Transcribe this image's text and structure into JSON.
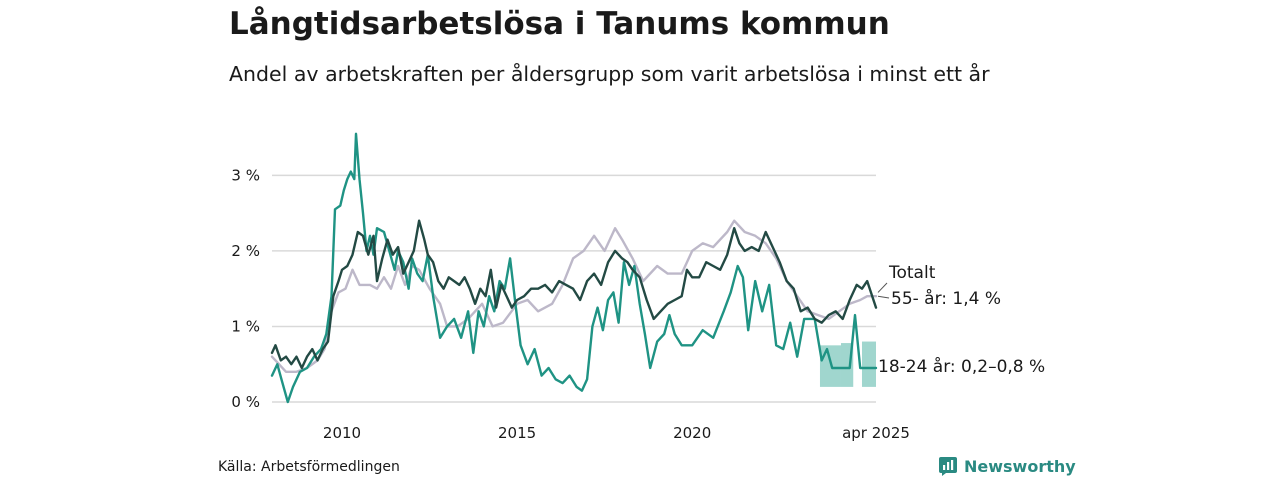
{
  "header": {
    "title": "Långtidsarbetslösa i Tanums kommun",
    "subtitle": "Andel av arbetskraften per åldersgrupp som varit arbetslösa i minst ett år"
  },
  "footer": {
    "source": "Källa: Arbetsförmedlingen",
    "brand": "Newsworthy"
  },
  "colors": {
    "total": "#234a44",
    "age55": "#bdb8c9",
    "age1824": "#1f9384",
    "band": "#8fcfc6",
    "grid": "#d9d9d9",
    "brand": "#2a8a82"
  },
  "chart_data": {
    "type": "line",
    "title": "Långtidsarbetslösa i Tanums kommun",
    "subtitle": "Andel av arbetskraften per åldersgrupp som varit arbetslösa i minst ett år",
    "xlim": [
      2008.0,
      2025.25
    ],
    "ylim": [
      0,
      3.6
    ],
    "x_ticks": [
      {
        "value": 2010,
        "label": "2010"
      },
      {
        "value": 2015,
        "label": "2015"
      },
      {
        "value": 2020,
        "label": "2020"
      },
      {
        "value": 2025.25,
        "label": "apr 2025"
      }
    ],
    "y_ticks": [
      {
        "value": 0,
        "label": "0 %"
      },
      {
        "value": 1,
        "label": "1 %"
      },
      {
        "value": 2,
        "label": "2 %"
      },
      {
        "value": 3,
        "label": "3 %"
      }
    ],
    "grid": true,
    "series": [
      {
        "key": "age55",
        "name": "55- år",
        "end_label": "55- år: 1,4 %",
        "points": [
          [
            2008.0,
            0.6
          ],
          [
            2008.2,
            0.5
          ],
          [
            2008.4,
            0.4
          ],
          [
            2008.7,
            0.4
          ],
          [
            2009.0,
            0.45
          ],
          [
            2009.3,
            0.55
          ],
          [
            2009.5,
            0.7
          ],
          [
            2009.7,
            1.2
          ],
          [
            2009.9,
            1.45
          ],
          [
            2010.1,
            1.5
          ],
          [
            2010.3,
            1.75
          ],
          [
            2010.5,
            1.55
          ],
          [
            2010.8,
            1.55
          ],
          [
            2011.0,
            1.5
          ],
          [
            2011.2,
            1.65
          ],
          [
            2011.4,
            1.5
          ],
          [
            2011.6,
            1.8
          ],
          [
            2011.8,
            1.55
          ],
          [
            2012.0,
            1.8
          ],
          [
            2012.2,
            1.75
          ],
          [
            2012.5,
            1.5
          ],
          [
            2012.8,
            1.3
          ],
          [
            2013.0,
            1.0
          ],
          [
            2013.3,
            1.0
          ],
          [
            2013.6,
            1.1
          ],
          [
            2014.0,
            1.3
          ],
          [
            2014.3,
            1.0
          ],
          [
            2014.6,
            1.05
          ],
          [
            2015.0,
            1.3
          ],
          [
            2015.3,
            1.35
          ],
          [
            2015.6,
            1.2
          ],
          [
            2016.0,
            1.3
          ],
          [
            2016.3,
            1.55
          ],
          [
            2016.6,
            1.9
          ],
          [
            2016.9,
            2.0
          ],
          [
            2017.2,
            2.2
          ],
          [
            2017.5,
            2.0
          ],
          [
            2017.8,
            2.3
          ],
          [
            2018.0,
            2.15
          ],
          [
            2018.3,
            1.9
          ],
          [
            2018.6,
            1.6
          ],
          [
            2019.0,
            1.8
          ],
          [
            2019.3,
            1.7
          ],
          [
            2019.7,
            1.7
          ],
          [
            2020.0,
            2.0
          ],
          [
            2020.3,
            2.1
          ],
          [
            2020.6,
            2.05
          ],
          [
            2021.0,
            2.25
          ],
          [
            2021.2,
            2.4
          ],
          [
            2021.5,
            2.25
          ],
          [
            2021.8,
            2.2
          ],
          [
            2022.1,
            2.1
          ],
          [
            2022.4,
            1.9
          ],
          [
            2022.7,
            1.6
          ],
          [
            2023.0,
            1.4
          ],
          [
            2023.3,
            1.2
          ],
          [
            2023.6,
            1.15
          ],
          [
            2023.9,
            1.1
          ],
          [
            2024.2,
            1.2
          ],
          [
            2024.5,
            1.3
          ],
          [
            2024.8,
            1.35
          ],
          [
            2025.0,
            1.4
          ],
          [
            2025.25,
            1.4
          ]
        ]
      },
      {
        "key": "age1824",
        "name": "18-24 år",
        "end_label": "18-24 år: 0,2–0,8 %",
        "points": [
          [
            2008.0,
            0.35
          ],
          [
            2008.15,
            0.5
          ],
          [
            2008.3,
            0.25
          ],
          [
            2008.45,
            0.0
          ],
          [
            2008.6,
            0.2
          ],
          [
            2008.8,
            0.4
          ],
          [
            2009.0,
            0.45
          ],
          [
            2009.2,
            0.6
          ],
          [
            2009.4,
            0.7
          ],
          [
            2009.55,
            0.9
          ],
          [
            2009.7,
            1.4
          ],
          [
            2009.8,
            2.55
          ],
          [
            2009.95,
            2.6
          ],
          [
            2010.05,
            2.8
          ],
          [
            2010.15,
            2.95
          ],
          [
            2010.25,
            3.05
          ],
          [
            2010.35,
            2.95
          ],
          [
            2010.4,
            3.55
          ],
          [
            2010.5,
            2.95
          ],
          [
            2010.6,
            2.5
          ],
          [
            2010.7,
            2.0
          ],
          [
            2010.8,
            2.2
          ],
          [
            2010.9,
            1.95
          ],
          [
            2011.0,
            2.3
          ],
          [
            2011.2,
            2.25
          ],
          [
            2011.35,
            2.0
          ],
          [
            2011.5,
            1.75
          ],
          [
            2011.6,
            2.0
          ],
          [
            2011.75,
            1.85
          ],
          [
            2011.9,
            1.5
          ],
          [
            2012.0,
            1.9
          ],
          [
            2012.15,
            1.7
          ],
          [
            2012.3,
            1.6
          ],
          [
            2012.45,
            1.95
          ],
          [
            2012.6,
            1.4
          ],
          [
            2012.8,
            0.85
          ],
          [
            2013.0,
            1.0
          ],
          [
            2013.2,
            1.1
          ],
          [
            2013.4,
            0.85
          ],
          [
            2013.6,
            1.2
          ],
          [
            2013.75,
            0.65
          ],
          [
            2013.9,
            1.2
          ],
          [
            2014.05,
            1.0
          ],
          [
            2014.2,
            1.4
          ],
          [
            2014.35,
            1.2
          ],
          [
            2014.5,
            1.6
          ],
          [
            2014.65,
            1.5
          ],
          [
            2014.8,
            1.9
          ],
          [
            2014.95,
            1.3
          ],
          [
            2015.1,
            0.75
          ],
          [
            2015.3,
            0.5
          ],
          [
            2015.5,
            0.7
          ],
          [
            2015.7,
            0.35
          ],
          [
            2015.9,
            0.45
          ],
          [
            2016.1,
            0.3
          ],
          [
            2016.3,
            0.25
          ],
          [
            2016.5,
            0.35
          ],
          [
            2016.7,
            0.2
          ],
          [
            2016.85,
            0.15
          ],
          [
            2017.0,
            0.3
          ],
          [
            2017.15,
            1.0
          ],
          [
            2017.3,
            1.25
          ],
          [
            2017.45,
            0.95
          ],
          [
            2017.6,
            1.35
          ],
          [
            2017.75,
            1.45
          ],
          [
            2017.9,
            1.05
          ],
          [
            2018.05,
            1.85
          ],
          [
            2018.2,
            1.55
          ],
          [
            2018.35,
            1.8
          ],
          [
            2018.5,
            1.3
          ],
          [
            2018.65,
            0.9
          ],
          [
            2018.8,
            0.45
          ],
          [
            2019.0,
            0.8
          ],
          [
            2019.2,
            0.9
          ],
          [
            2019.35,
            1.15
          ],
          [
            2019.5,
            0.9
          ],
          [
            2019.7,
            0.75
          ],
          [
            2020.0,
            0.75
          ],
          [
            2020.3,
            0.95
          ],
          [
            2020.6,
            0.85
          ],
          [
            2020.9,
            1.2
          ],
          [
            2021.1,
            1.45
          ],
          [
            2021.3,
            1.8
          ],
          [
            2021.45,
            1.65
          ],
          [
            2021.6,
            0.95
          ],
          [
            2021.8,
            1.6
          ],
          [
            2022.0,
            1.2
          ],
          [
            2022.2,
            1.55
          ],
          [
            2022.4,
            0.75
          ],
          [
            2022.6,
            0.7
          ],
          [
            2022.8,
            1.05
          ],
          [
            2023.0,
            0.6
          ],
          [
            2023.2,
            1.1
          ],
          [
            2023.5,
            1.1
          ],
          [
            2023.7,
            0.55
          ],
          [
            2023.85,
            0.7
          ],
          [
            2024.0,
            0.45
          ],
          [
            2024.3,
            0.45
          ],
          [
            2024.5,
            0.45
          ],
          [
            2024.65,
            1.15
          ],
          [
            2024.8,
            0.45
          ],
          [
            2025.0,
            0.45
          ],
          [
            2025.25,
            0.45
          ]
        ]
      },
      {
        "key": "total",
        "name": "Totalt",
        "end_label": "Totalt",
        "points": [
          [
            2008.0,
            0.65
          ],
          [
            2008.1,
            0.75
          ],
          [
            2008.25,
            0.55
          ],
          [
            2008.4,
            0.6
          ],
          [
            2008.55,
            0.5
          ],
          [
            2008.7,
            0.6
          ],
          [
            2008.85,
            0.45
          ],
          [
            2009.0,
            0.6
          ],
          [
            2009.15,
            0.7
          ],
          [
            2009.3,
            0.55
          ],
          [
            2009.45,
            0.7
          ],
          [
            2009.6,
            0.8
          ],
          [
            2009.75,
            1.4
          ],
          [
            2009.9,
            1.6
          ],
          [
            2010.0,
            1.75
          ],
          [
            2010.15,
            1.8
          ],
          [
            2010.3,
            1.95
          ],
          [
            2010.45,
            2.25
          ],
          [
            2010.6,
            2.2
          ],
          [
            2010.75,
            1.95
          ],
          [
            2010.9,
            2.2
          ],
          [
            2011.0,
            1.6
          ],
          [
            2011.15,
            1.9
          ],
          [
            2011.3,
            2.15
          ],
          [
            2011.45,
            1.95
          ],
          [
            2011.6,
            2.05
          ],
          [
            2011.75,
            1.7
          ],
          [
            2011.9,
            1.85
          ],
          [
            2012.05,
            2.0
          ],
          [
            2012.2,
            2.4
          ],
          [
            2012.35,
            2.15
          ],
          [
            2012.45,
            1.95
          ],
          [
            2012.6,
            1.85
          ],
          [
            2012.75,
            1.6
          ],
          [
            2012.9,
            1.5
          ],
          [
            2013.05,
            1.65
          ],
          [
            2013.2,
            1.6
          ],
          [
            2013.35,
            1.55
          ],
          [
            2013.5,
            1.65
          ],
          [
            2013.65,
            1.5
          ],
          [
            2013.8,
            1.3
          ],
          [
            2013.95,
            1.5
          ],
          [
            2014.1,
            1.4
          ],
          [
            2014.25,
            1.75
          ],
          [
            2014.4,
            1.25
          ],
          [
            2014.55,
            1.55
          ],
          [
            2014.7,
            1.4
          ],
          [
            2014.85,
            1.25
          ],
          [
            2015.0,
            1.35
          ],
          [
            2015.2,
            1.4
          ],
          [
            2015.4,
            1.5
          ],
          [
            2015.6,
            1.5
          ],
          [
            2015.8,
            1.55
          ],
          [
            2016.0,
            1.45
          ],
          [
            2016.2,
            1.6
          ],
          [
            2016.4,
            1.55
          ],
          [
            2016.6,
            1.5
          ],
          [
            2016.8,
            1.35
          ],
          [
            2017.0,
            1.6
          ],
          [
            2017.2,
            1.7
          ],
          [
            2017.4,
            1.55
          ],
          [
            2017.6,
            1.85
          ],
          [
            2017.8,
            2.0
          ],
          [
            2018.0,
            1.9
          ],
          [
            2018.15,
            1.85
          ],
          [
            2018.3,
            1.75
          ],
          [
            2018.5,
            1.65
          ],
          [
            2018.7,
            1.35
          ],
          [
            2018.9,
            1.1
          ],
          [
            2019.1,
            1.2
          ],
          [
            2019.3,
            1.3
          ],
          [
            2019.5,
            1.35
          ],
          [
            2019.7,
            1.4
          ],
          [
            2019.85,
            1.75
          ],
          [
            2020.0,
            1.65
          ],
          [
            2020.2,
            1.65
          ],
          [
            2020.4,
            1.85
          ],
          [
            2020.6,
            1.8
          ],
          [
            2020.8,
            1.75
          ],
          [
            2021.0,
            1.95
          ],
          [
            2021.2,
            2.3
          ],
          [
            2021.35,
            2.1
          ],
          [
            2021.5,
            2.0
          ],
          [
            2021.7,
            2.05
          ],
          [
            2021.9,
            2.0
          ],
          [
            2022.1,
            2.25
          ],
          [
            2022.3,
            2.05
          ],
          [
            2022.5,
            1.85
          ],
          [
            2022.7,
            1.6
          ],
          [
            2022.9,
            1.5
          ],
          [
            2023.1,
            1.2
          ],
          [
            2023.3,
            1.25
          ],
          [
            2023.5,
            1.1
          ],
          [
            2023.7,
            1.05
          ],
          [
            2023.9,
            1.15
          ],
          [
            2024.1,
            1.2
          ],
          [
            2024.3,
            1.1
          ],
          [
            2024.5,
            1.35
          ],
          [
            2024.7,
            1.55
          ],
          [
            2024.85,
            1.5
          ],
          [
            2025.0,
            1.6
          ],
          [
            2025.25,
            1.25
          ]
        ]
      }
    ],
    "band": {
      "series": "18-24 år",
      "ranges": [
        {
          "x": [
            2023.65,
            2024.25
          ],
          "low": 0.2,
          "high": 0.75
        },
        {
          "x": [
            2024.25,
            2024.6
          ],
          "low": 0.2,
          "high": 0.78
        },
        {
          "x": [
            2024.85,
            2025.25
          ],
          "low": 0.2,
          "high": 0.8
        }
      ]
    }
  }
}
